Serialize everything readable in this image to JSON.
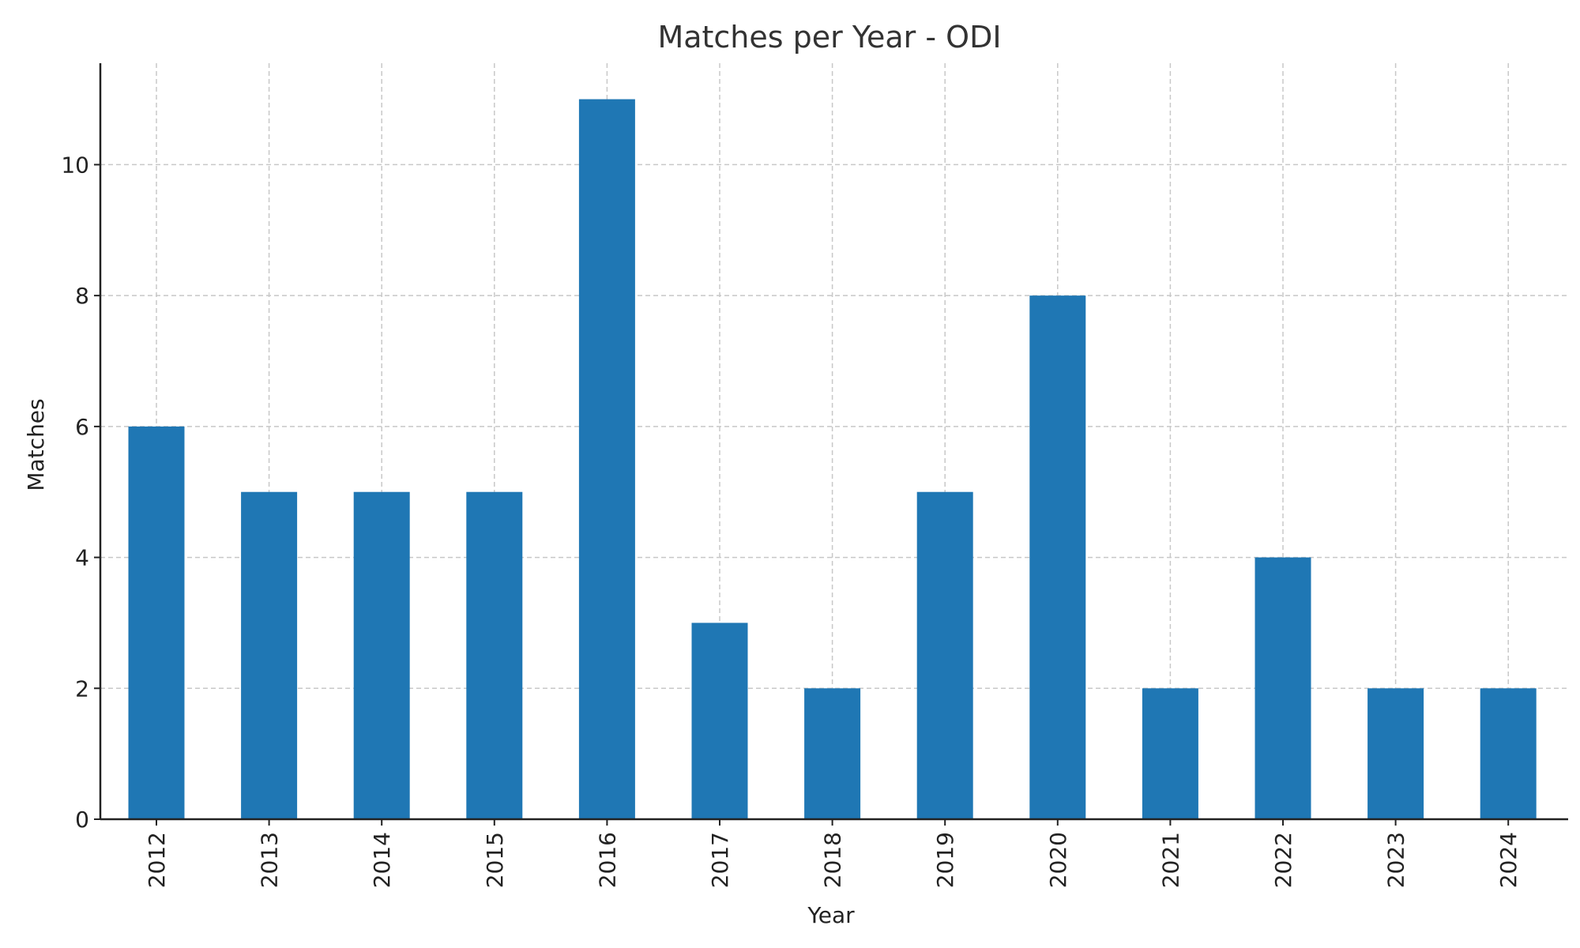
{
  "chart_data": {
    "type": "bar",
    "title": "Matches per Year - ODI",
    "xlabel": "Year",
    "ylabel": "Matches",
    "categories": [
      "2012",
      "2013",
      "2014",
      "2015",
      "2016",
      "2017",
      "2018",
      "2019",
      "2020",
      "2021",
      "2022",
      "2023",
      "2024"
    ],
    "values": [
      6,
      5,
      5,
      5,
      11,
      3,
      2,
      5,
      8,
      2,
      4,
      2,
      2
    ],
    "ylim": [
      0,
      11.55
    ],
    "yticks": [
      0,
      2,
      4,
      6,
      8,
      10
    ],
    "grid": true,
    "bar_color": "#1f77b4"
  }
}
